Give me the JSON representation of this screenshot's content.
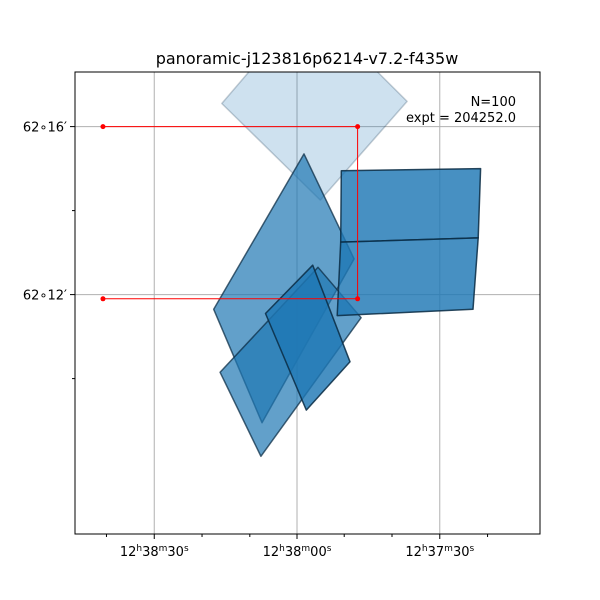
{
  "chart_data": {
    "type": "sky-footprint",
    "title": "panoramic-j123816p6214-v7.2-f435w",
    "annotations": [
      "N=100",
      "expt = 204252.0"
    ],
    "grid": true,
    "xlim": [
      -31.3,
      8.6
    ],
    "ylim": [
      -5.7,
      5.3
    ],
    "x_ticks": [
      {
        "value": -24.5,
        "label": "12ʰ38ᵐ30ˢ",
        "h": "12",
        "m": "38",
        "s": "30"
      },
      {
        "value": -12.25,
        "label": "12ʰ38ᵐ00ˢ",
        "h": "12",
        "m": "38",
        "s": "00"
      },
      {
        "value": 0,
        "label": "12ʰ37ᵐ30ˢ",
        "h": "12",
        "m": "37",
        "s": "30"
      }
    ],
    "x_minor_ticks": [
      -28.6,
      -20.4,
      -16.3,
      -8.2,
      -4.1,
      4.1
    ],
    "y_ticks": [
      {
        "value": 4,
        "label": "62∘16′"
      },
      {
        "value": 0,
        "label": "62∘12′"
      }
    ],
    "y_minor_ticks": [
      -2,
      2
    ],
    "colors": {
      "fill": "#1f77b4",
      "edge_dark": "#0b2c44",
      "box": "#ff0000",
      "grid": "#b0b0b0"
    },
    "footprints": [
      {
        "alpha": 0.22,
        "corners": [
          [
            -18.7,
            4.55
          ],
          [
            -11.3,
            6.95
          ],
          [
            -2.8,
            4.6
          ],
          [
            -10.25,
            2.25
          ]
        ]
      },
      {
        "alpha": 0.7,
        "corners": [
          [
            -19.4,
            -0.35
          ],
          [
            -11.65,
            3.35
          ],
          [
            -7.35,
            0.85
          ],
          [
            -15.25,
            -3.05
          ]
        ]
      },
      {
        "alpha": 0.7,
        "corners": [
          [
            -18.85,
            -1.85
          ],
          [
            -10.45,
            0.65
          ],
          [
            -6.75,
            -0.55
          ],
          [
            -15.35,
            -3.85
          ]
        ]
      },
      {
        "alpha": 0.82,
        "corners": [
          [
            -14.95,
            -0.45
          ],
          [
            -10.9,
            0.7
          ],
          [
            -7.7,
            -1.6
          ],
          [
            -11.45,
            -2.75
          ]
        ]
      },
      {
        "alpha": 0.82,
        "corners": [
          [
            -8.45,
            2.95
          ],
          [
            3.5,
            3.0
          ],
          [
            3.3,
            1.35
          ],
          [
            -8.5,
            1.25
          ]
        ]
      },
      {
        "alpha": 0.82,
        "corners": [
          [
            -8.5,
            1.25
          ],
          [
            3.3,
            1.35
          ],
          [
            2.85,
            -0.35
          ],
          [
            -8.8,
            -0.5
          ]
        ]
      }
    ],
    "box_points": [
      [
        -28.9,
        4.0
      ],
      [
        -7.05,
        4.0
      ],
      [
        -7.05,
        -0.1
      ],
      [
        -28.9,
        -0.1
      ]
    ]
  }
}
